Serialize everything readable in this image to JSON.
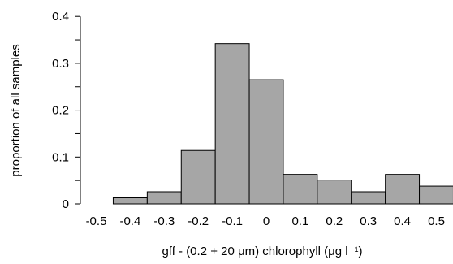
{
  "chart_data": {
    "type": "histogram",
    "xlabel": "gff - (0.2 + 20 μm) chlorophyll (μg l⁻¹)",
    "ylabel": "proportion of all samples",
    "bins": [
      {
        "x0": -0.45,
        "x1": -0.35,
        "value": 0.013
      },
      {
        "x0": -0.35,
        "x1": -0.25,
        "value": 0.026
      },
      {
        "x0": -0.25,
        "x1": -0.15,
        "value": 0.114
      },
      {
        "x0": -0.15,
        "x1": -0.05,
        "value": 0.342
      },
      {
        "x0": -0.05,
        "x1": 0.05,
        "value": 0.265
      },
      {
        "x0": 0.05,
        "x1": 0.15,
        "value": 0.063
      },
      {
        "x0": 0.15,
        "x1": 0.25,
        "value": 0.051
      },
      {
        "x0": 0.25,
        "x1": 0.35,
        "value": 0.026
      },
      {
        "x0": 0.35,
        "x1": 0.45,
        "value": 0.063
      },
      {
        "x0": 0.45,
        "x1": 0.55,
        "value": 0.038
      }
    ],
    "xticks": [
      -0.5,
      -0.4,
      -0.3,
      -0.2,
      -0.1,
      0,
      0.1,
      0.2,
      0.3,
      0.4,
      0.5
    ],
    "xtick_labels": [
      "-0.5",
      "-0.4",
      "-0.3",
      "-0.2",
      "-0.1",
      "0",
      "0.1",
      "0.2",
      "0.3",
      "0.4",
      "0.5"
    ],
    "yticks": [
      0,
      0.1,
      0.2,
      0.3,
      0.4
    ],
    "ytick_labels": [
      "0",
      "0.1",
      "0.2",
      "0.3",
      "0.4"
    ],
    "xlim": [
      -0.55,
      0.55
    ],
    "ylim": [
      0,
      0.4
    ],
    "grid": false,
    "colors": {
      "bar_fill": "#a6a6a6",
      "bar_stroke": "#000000"
    }
  }
}
